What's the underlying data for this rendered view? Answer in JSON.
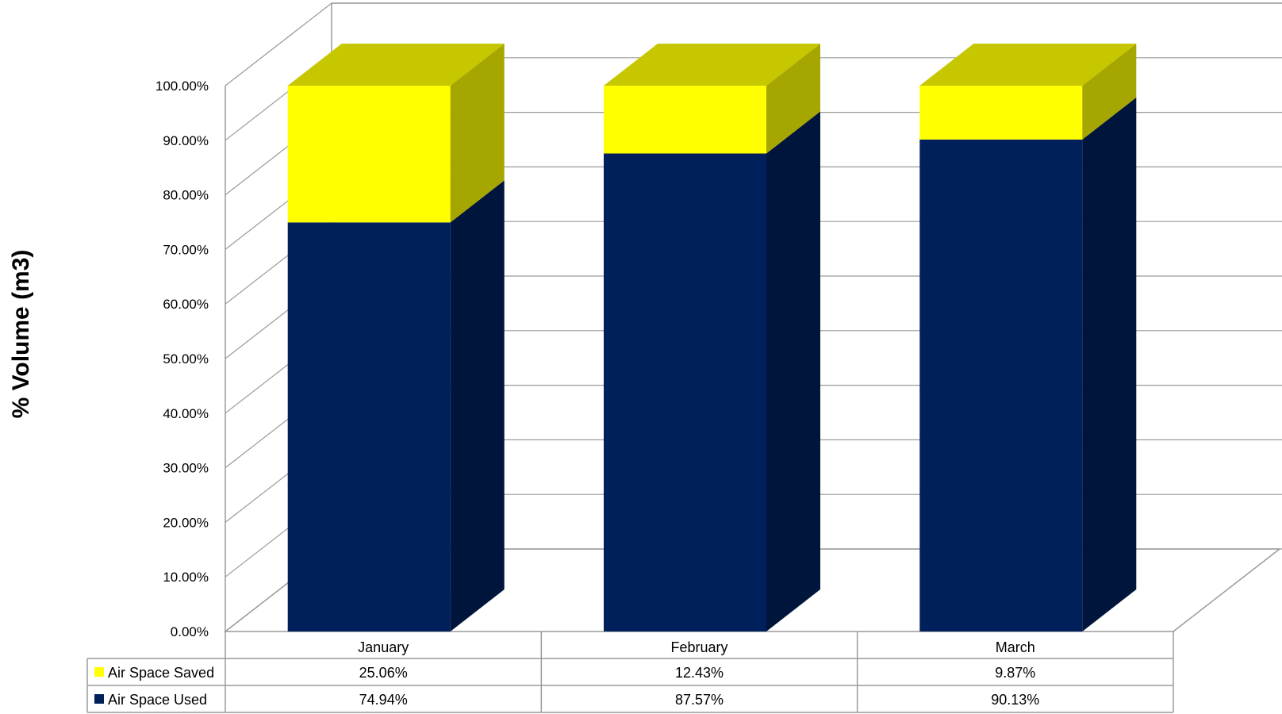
{
  "chart_data": {
    "type": "bar",
    "stacked": true,
    "three_d": true,
    "title": "",
    "xlabel": "",
    "ylabel": "% Volume (m3)",
    "ylim": [
      0,
      100
    ],
    "y_ticks": [
      "0.00%",
      "10.00%",
      "20.00%",
      "30.00%",
      "40.00%",
      "50.00%",
      "60.00%",
      "70.00%",
      "80.00%",
      "90.00%",
      "100.00%"
    ],
    "grid": true,
    "legend": "data-table",
    "categories": [
      "January",
      "February",
      "March"
    ],
    "series": [
      {
        "name": "Air Space Used",
        "values": [
          74.94,
          87.57,
          90.13
        ],
        "labels": [
          "74.94%",
          "87.57%",
          "90.13%"
        ],
        "color": "#00205C"
      },
      {
        "name": "Air Space Saved",
        "values": [
          25.06,
          12.43,
          9.87
        ],
        "labels": [
          "25.06%",
          "12.43%",
          "9.87%"
        ],
        "color": "#FFFF00"
      }
    ]
  }
}
